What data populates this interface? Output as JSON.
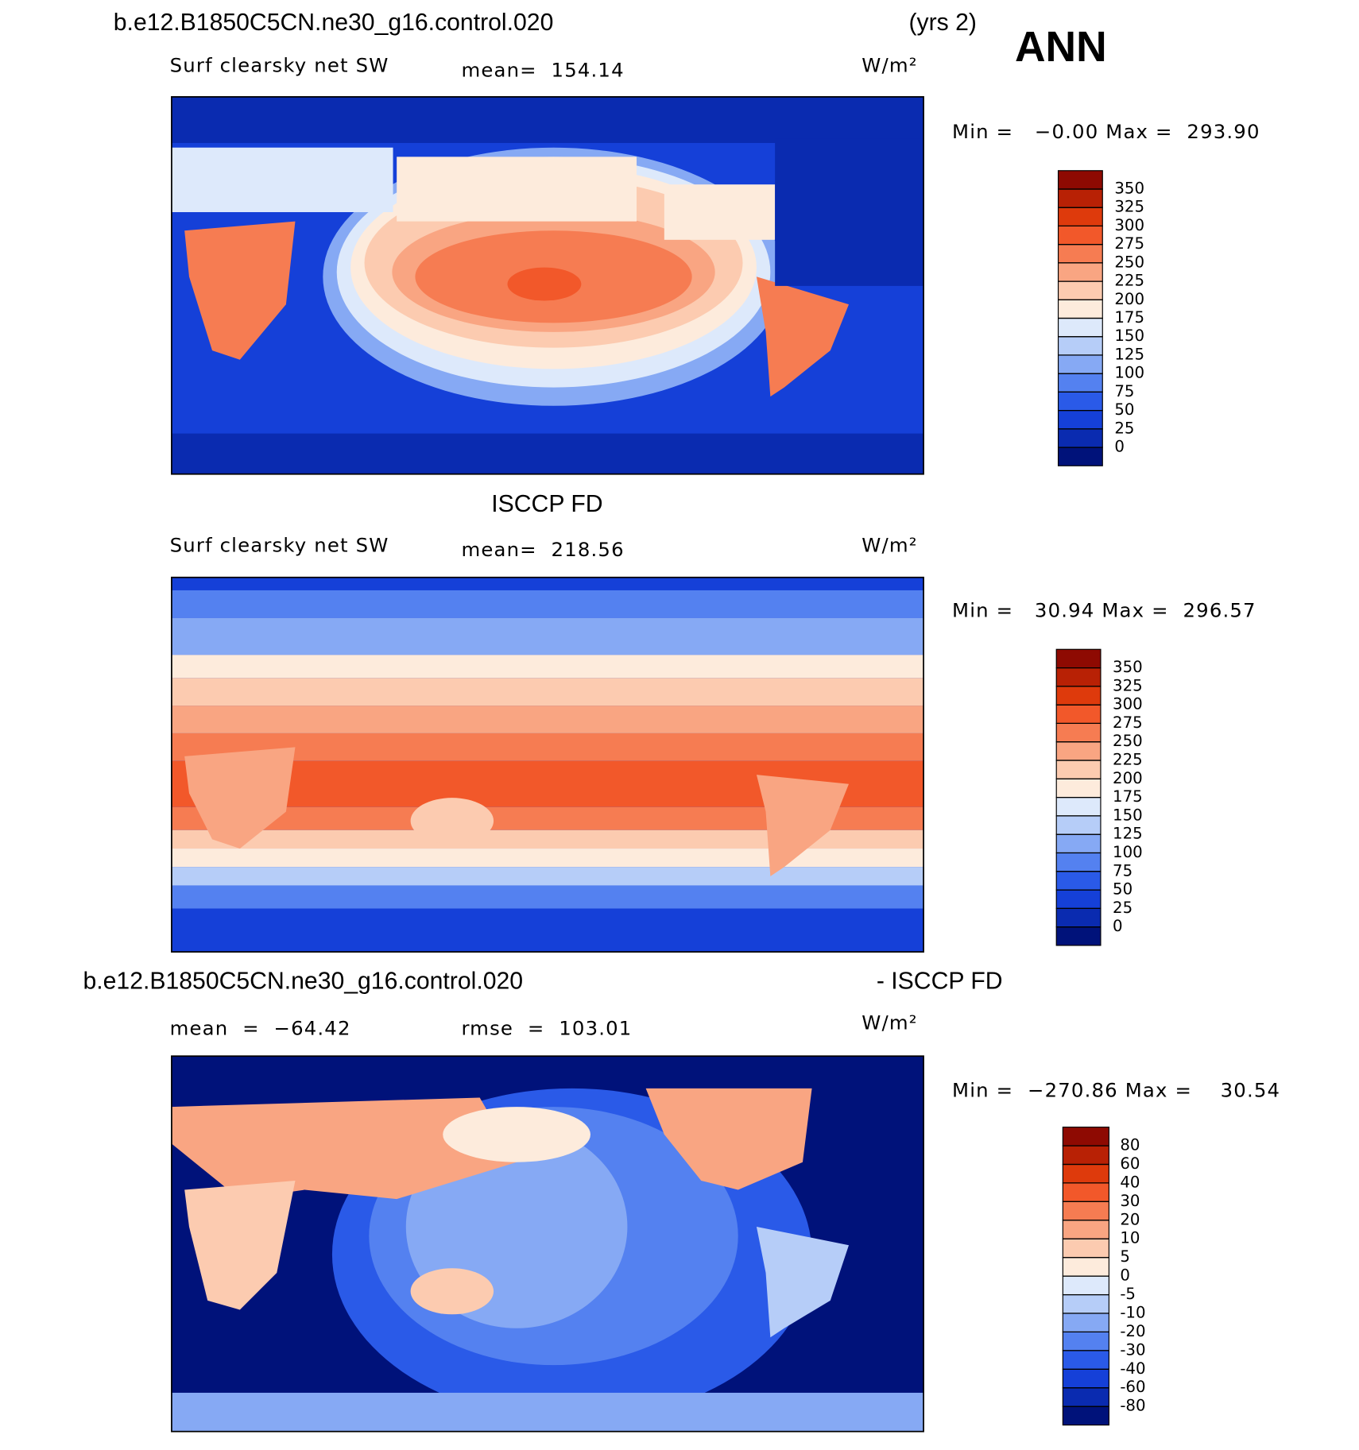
{
  "header": {
    "case": "b.e12.B1850C5CN.ne30_g16.control.020",
    "years": "(yrs 2)",
    "season": "ANN"
  },
  "panels": [
    {
      "variable": "Surf clearsky net SW",
      "mean": "mean=  154.14",
      "units": "W/m²",
      "min_max": "Min =   −0.00 Max =  293.90",
      "colorbar": {
        "levels": [
          0,
          25,
          50,
          75,
          100,
          125,
          150,
          175,
          200,
          225,
          250,
          275,
          300,
          325,
          350
        ],
        "colors": [
          "#00127a",
          "#0a2bb0",
          "#1540d8",
          "#2a5ae8",
          "#5481f0",
          "#86a9f4",
          "#b6cdf8",
          "#dde9fb",
          "#fdebdc",
          "#fccbb0",
          "#f9a582",
          "#f67c52",
          "#f2582a",
          "#de3a0c",
          "#b82105",
          "#8e0a02"
        ]
      }
    },
    {
      "title": "ISCCP FD",
      "variable": "Surf clearsky net SW",
      "mean": "mean=  218.56",
      "units": "W/m²",
      "min_max": "Min =   30.94 Max =  296.57",
      "colorbar": {
        "levels": [
          0,
          25,
          50,
          75,
          100,
          125,
          150,
          175,
          200,
          225,
          250,
          275,
          300,
          325,
          350
        ],
        "colors": [
          "#00127a",
          "#0a2bb0",
          "#1540d8",
          "#2a5ae8",
          "#5481f0",
          "#86a9f4",
          "#b6cdf8",
          "#dde9fb",
          "#fdebdc",
          "#fccbb0",
          "#f9a582",
          "#f67c52",
          "#f2582a",
          "#de3a0c",
          "#b82105",
          "#8e0a02"
        ]
      }
    },
    {
      "title_left": "b.e12.B1850C5CN.ne30_g16.control.020",
      "title_right": "- ISCCP FD",
      "mean": "mean  =  −64.42",
      "rmse": "rmse  =  103.01",
      "units": "W/m²",
      "min_max": "Min =  −270.86 Max =    30.54",
      "colorbar": {
        "levels": [
          -80,
          -60,
          -40,
          -30,
          -20,
          -10,
          -5,
          0,
          5,
          10,
          20,
          30,
          40,
          60,
          80
        ],
        "colors": [
          "#00127a",
          "#0a2bb0",
          "#1540d8",
          "#2a5ae8",
          "#5481f0",
          "#86a9f4",
          "#b6cdf8",
          "#dde9fb",
          "#fdebdc",
          "#fccbb0",
          "#f9a582",
          "#f67c52",
          "#f2582a",
          "#de3a0c",
          "#b82105",
          "#8e0a02"
        ]
      }
    }
  ]
}
